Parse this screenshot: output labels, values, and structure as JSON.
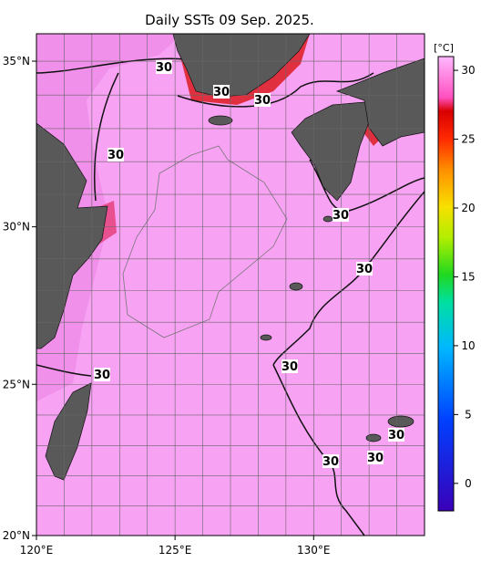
{
  "title": "Daily SSTs 09 Sep. 2025.",
  "map": {
    "lon_range": [
      120,
      134
    ],
    "lat_range": [
      20,
      35.8
    ],
    "lon_ticks": [
      {
        "value": 120,
        "label": "120°E"
      },
      {
        "value": 125,
        "label": "125°E"
      },
      {
        "value": 130,
        "label": "130°E"
      }
    ],
    "lat_ticks": [
      {
        "value": 20,
        "label": "20°N"
      },
      {
        "value": 25,
        "label": "25°N"
      },
      {
        "value": 30,
        "label": "30°N"
      },
      {
        "value": 35,
        "label": "35°N"
      }
    ],
    "contour_labels": [
      "30",
      "30",
      "30",
      "30",
      "30",
      "30",
      "30",
      "30",
      "30",
      "30",
      "30"
    ]
  },
  "colorbar": {
    "unit": "[°C]",
    "range": [
      -2,
      31
    ],
    "ticks": [
      0,
      5,
      10,
      15,
      20,
      25,
      30
    ]
  }
}
